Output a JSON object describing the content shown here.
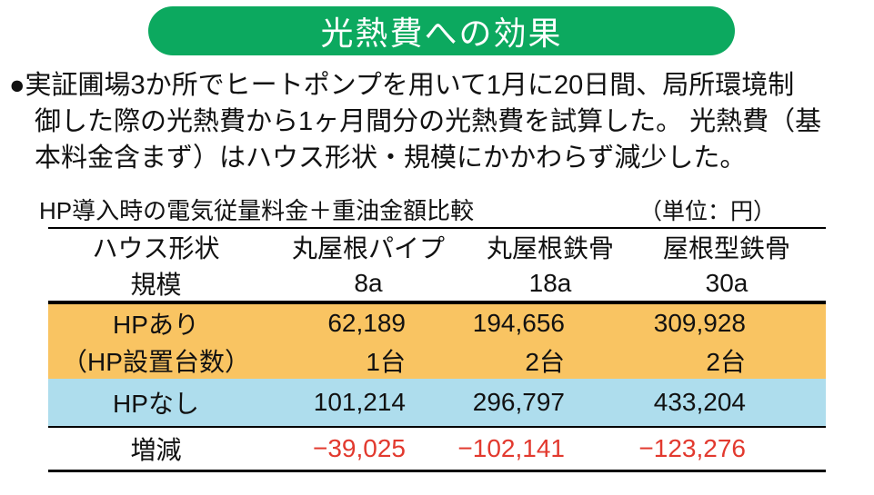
{
  "banner": {
    "title": "光熱費への効果"
  },
  "description": {
    "lines": [
      "●実証圃場3か所でヒートポンプを用いて1月に20日間、局所環境制",
      "御した際の光熱費から1ヶ月間分の光熱費を試算した。 光熱費（基",
      "本料金含まず）はハウス形状・規模にかかわらず減少した。"
    ]
  },
  "table": {
    "title": "HP導入時の電気従量料金＋重油金額比較",
    "unit_label": "（単位：円）",
    "header": {
      "col1": {
        "line1": "ハウス形状",
        "line2": "規模"
      },
      "col2": {
        "line1": "丸屋根パイプ",
        "line2": "8a"
      },
      "col3": {
        "line1": "丸屋根鉄骨",
        "line2": "18a"
      },
      "col4": {
        "line1": "屋根型鉄骨",
        "line2": "30a"
      }
    },
    "rows": {
      "hp_with": {
        "label1": "HPあり",
        "label2": "（HP設置台数）",
        "values": [
          "62,189",
          "194,656",
          "309,928"
        ],
        "units": [
          "1台",
          "2台",
          "2台"
        ]
      },
      "hp_without": {
        "label": "HPなし",
        "values": [
          "101,214",
          "296,797",
          "433,204"
        ]
      },
      "difference": {
        "label": "増減",
        "values": [
          "−39,025",
          "−102,141",
          "−123,276"
        ]
      }
    }
  },
  "colors": {
    "banner_green": "#0ca95f",
    "row_orange": "#f9c462",
    "row_blue": "#aedded",
    "negative_red": "#e2392e"
  },
  "chart_data": {
    "type": "table",
    "title": "HP導入時の電気従量料金＋重油金額比較",
    "unit": "円",
    "columns": [
      "丸屋根パイプ 8a",
      "丸屋根鉄骨 18a",
      "屋根型鉄骨 30a"
    ],
    "rows": [
      {
        "label": "HPあり（HP設置台数）",
        "values": [
          62189,
          194656,
          309928
        ],
        "hp_units": [
          "1台",
          "2台",
          "2台"
        ]
      },
      {
        "label": "HPなし",
        "values": [
          101214,
          296797,
          433204
        ]
      },
      {
        "label": "増減",
        "values": [
          -39025,
          -102141,
          -123276
        ]
      }
    ]
  }
}
